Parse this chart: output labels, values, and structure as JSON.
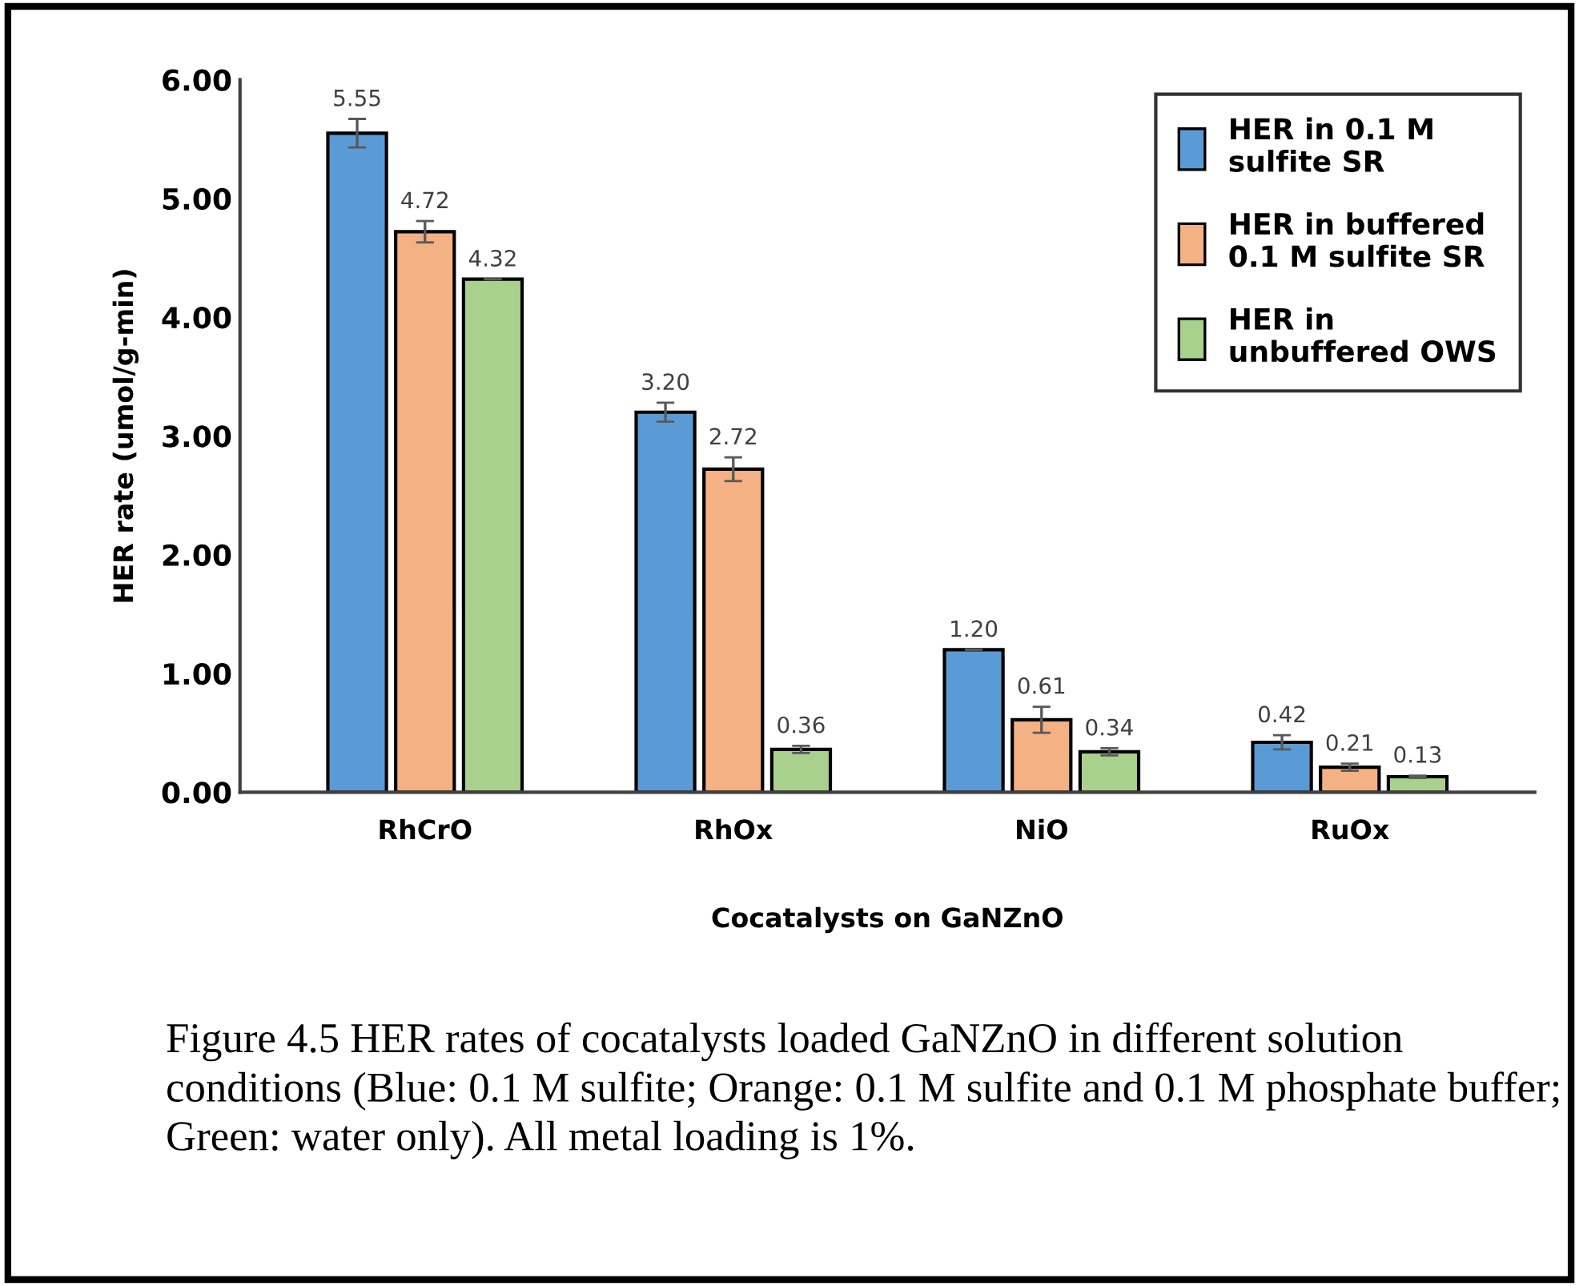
{
  "chart_data": {
    "type": "bar",
    "xlabel": "Cocatalysts on GaNZnO",
    "ylabel": "HER rate (umol/g-min)",
    "categories": [
      "RhCrO",
      "RhOx",
      "NiO",
      "RuOx"
    ],
    "series": [
      {
        "name": "HER in 0.1 M\nsulfite SR",
        "color": "#5b9bd5",
        "values": [
          5.55,
          3.2,
          1.2,
          0.42
        ],
        "value_labels": [
          "5.55",
          "3.20",
          "1.20",
          "0.42"
        ],
        "errors": [
          0.12,
          0.08,
          0,
          0.06
        ]
      },
      {
        "name": "HER in buffered\n0.1 M sulfite SR",
        "color": "#f4b183",
        "values": [
          4.72,
          2.72,
          0.61,
          0.21
        ],
        "value_labels": [
          "4.72",
          "2.72",
          "0.61",
          "0.21"
        ],
        "errors": [
          0.09,
          0.1,
          0.11,
          0.03
        ]
      },
      {
        "name": "HER in\nunbuffered OWS",
        "color": "#a9d18e",
        "values": [
          4.32,
          0.36,
          0.34,
          0.13
        ],
        "value_labels": [
          "4.32",
          "0.36",
          "0.34",
          "0.13"
        ],
        "errors": [
          0,
          0.03,
          0.03,
          0.01
        ]
      }
    ],
    "ylim": [
      0,
      6
    ],
    "yticks": [
      {
        "value": 0,
        "label": "0.00"
      },
      {
        "value": 1,
        "label": "1.00"
      },
      {
        "value": 2,
        "label": "2.00"
      },
      {
        "value": 3,
        "label": "3.00"
      },
      {
        "value": 4,
        "label": "4.00"
      },
      {
        "value": 5,
        "label": "5.00"
      },
      {
        "value": 6,
        "label": "6.00"
      }
    ],
    "legend": "top right",
    "grid": false,
    "annotations": [
      "Figure 4.5 HER rates of cocatalysts loaded GaNZnO in different solution conditions (Blue: 0.1 M sulfite; Orange: 0.1 M sulfite and 0.1 M phosphate buffer; Green: water only). All metal loading is 1%."
    ]
  }
}
